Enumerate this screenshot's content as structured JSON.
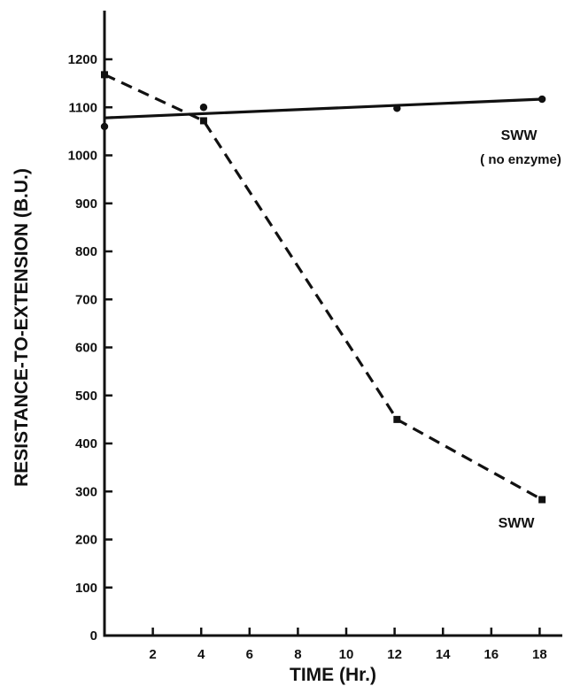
{
  "chart_data": {
    "type": "line",
    "xlabel": "TIME (Hr.)",
    "ylabel": "RESISTANCE-TO-EXTENSION (B.U.)",
    "xlim": [
      0,
      19.5
    ],
    "ylim": [
      0,
      1200
    ],
    "xticks": [
      2,
      4,
      6,
      8,
      10,
      12,
      14,
      16,
      18
    ],
    "yticks": [
      0,
      100,
      200,
      300,
      400,
      500,
      600,
      700,
      800,
      900,
      1000,
      1100,
      1200
    ],
    "grid": false,
    "series": [
      {
        "name": "SWW",
        "name_line2": "( no enzyme)",
        "style": "solid",
        "marker": "circle",
        "color": "#111111",
        "points": [
          {
            "x": 0,
            "y": 1060
          },
          {
            "x": 4.1,
            "y": 1100
          },
          {
            "x": 12.1,
            "y": 1098
          },
          {
            "x": 18.1,
            "y": 1117
          }
        ],
        "fit_line": [
          {
            "x": 0,
            "y": 1078
          },
          {
            "x": 18.1,
            "y": 1117
          }
        ]
      },
      {
        "name": "SWW",
        "style": "dashed",
        "marker": "square",
        "color": "#111111",
        "points": [
          {
            "x": 0,
            "y": 1168
          },
          {
            "x": 4.1,
            "y": 1072
          },
          {
            "x": 12.1,
            "y": 450
          },
          {
            "x": 18.1,
            "y": 283
          }
        ]
      }
    ]
  }
}
